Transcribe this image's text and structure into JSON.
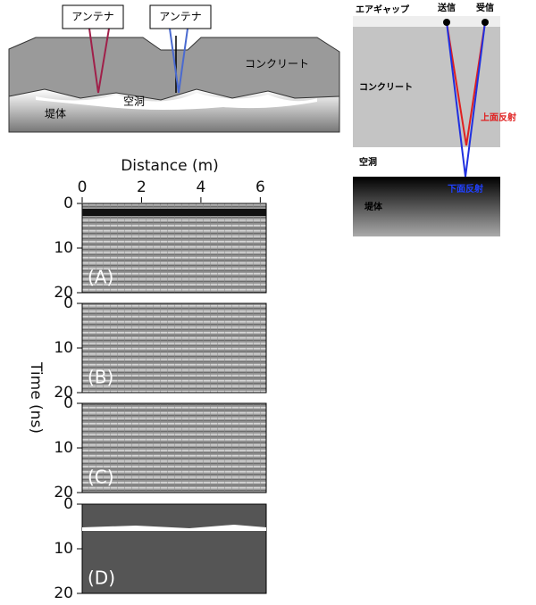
{
  "cross_section": {
    "antenna_labels": [
      "アンテナ",
      "アンテナ"
    ],
    "concrete": "コンクリート",
    "cavity": "空洞",
    "embankment": "堤体"
  },
  "reflection_diagram": {
    "air_gap": "エアギャップ",
    "transmit": "送信",
    "receive": "受信",
    "concrete": "コンクリート",
    "top_reflection": "上面反射",
    "cavity": "空洞",
    "bottom_reflection": "下面反射",
    "embankment": "堤体"
  },
  "radargram": {
    "x_label": "Distance (m)",
    "y_label": "Time (ns)",
    "xlim": [
      0,
      6.2
    ],
    "xticks": [
      0,
      2,
      4,
      6
    ],
    "ylim": [
      0,
      20
    ],
    "yticks": [
      0,
      10,
      20
    ],
    "panels": [
      "(A)",
      "(B)",
      "(C)",
      "(D)"
    ]
  }
}
